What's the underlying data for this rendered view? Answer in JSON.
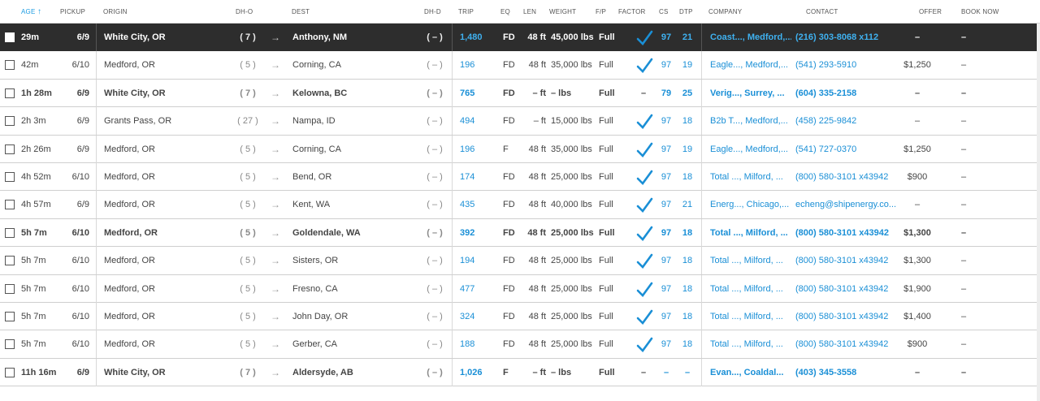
{
  "headers": {
    "age": "AGE",
    "pickup": "PICKUP",
    "origin": "ORIGIN",
    "dho": "DH-O",
    "dest": "DEST",
    "dhd": "DH-D",
    "trip": "TRIP",
    "eq": "EQ",
    "len": "LEN",
    "weight": "WEIGHT",
    "fp": "F/P",
    "factor": "FACTOR",
    "cs": "CS",
    "dtp": "DTP",
    "company": "COMPANY",
    "contact": "CONTACT",
    "offer": "OFFER",
    "booknow": "BOOK NOW"
  },
  "sort_icon": "sort-up-arrow-icon",
  "arrow_glyph": "→",
  "rows": [
    {
      "age": "29m",
      "pickup": "6/9",
      "origin": "White City, OR",
      "dho": "( 7 )",
      "dest": "Anthony, NM",
      "dhd": "( – )",
      "trip": "1,480",
      "eq": "FD",
      "len": "48 ft",
      "weight": "45,000 lbs",
      "fp": "Full",
      "factor": true,
      "cs": "97",
      "dtp": "21",
      "company": "Coast..., Medford,...",
      "contact": "(216) 303-8068 x112",
      "offer": "–",
      "booknow": "–"
    },
    {
      "age": "42m",
      "pickup": "6/10",
      "origin": "Medford, OR",
      "dho": "( 5 )",
      "dest": "Corning, CA",
      "dhd": "( – )",
      "trip": "196",
      "eq": "FD",
      "len": "48 ft",
      "weight": "35,000 lbs",
      "fp": "Full",
      "factor": true,
      "cs": "97",
      "dtp": "19",
      "company": "Eagle..., Medford,...",
      "contact": "(541) 293-5910",
      "offer": "$1,250",
      "booknow": "–"
    },
    {
      "age": "1h 28m",
      "pickup": "6/9",
      "origin": "White City, OR",
      "dho": "( 7 )",
      "dest": "Kelowna, BC",
      "dhd": "( – )",
      "trip": "765",
      "eq": "FD",
      "len": "– ft",
      "weight": "– lbs",
      "fp": "Full",
      "factor": false,
      "cs": "79",
      "dtp": "25",
      "company": "Verig..., Surrey, ...",
      "contact": "(604) 335-2158",
      "offer": "–",
      "booknow": "–"
    },
    {
      "age": "2h 3m",
      "pickup": "6/9",
      "origin": "Grants Pass, OR",
      "dho": "( 27 )",
      "dest": "Nampa, ID",
      "dhd": "( – )",
      "trip": "494",
      "eq": "FD",
      "len": "– ft",
      "weight": "15,000 lbs",
      "fp": "Full",
      "factor": true,
      "cs": "97",
      "dtp": "18",
      "company": "B2b T..., Medford,...",
      "contact": "(458) 225-9842",
      "offer": "–",
      "booknow": "–"
    },
    {
      "age": "2h 26m",
      "pickup": "6/9",
      "origin": "Medford, OR",
      "dho": "( 5 )",
      "dest": "Corning, CA",
      "dhd": "( – )",
      "trip": "196",
      "eq": "F",
      "len": "48 ft",
      "weight": "35,000 lbs",
      "fp": "Full",
      "factor": true,
      "cs": "97",
      "dtp": "19",
      "company": "Eagle..., Medford,...",
      "contact": "(541) 727-0370",
      "offer": "$1,250",
      "booknow": "–"
    },
    {
      "age": "4h 52m",
      "pickup": "6/10",
      "origin": "Medford, OR",
      "dho": "( 5 )",
      "dest": "Bend, OR",
      "dhd": "( – )",
      "trip": "174",
      "eq": "FD",
      "len": "48 ft",
      "weight": "25,000 lbs",
      "fp": "Full",
      "factor": true,
      "cs": "97",
      "dtp": "18",
      "company": "Total ..., Milford, ...",
      "contact": "(800) 580-3101 x43942",
      "offer": "$900",
      "booknow": "–"
    },
    {
      "age": "4h 57m",
      "pickup": "6/9",
      "origin": "Medford, OR",
      "dho": "( 5 )",
      "dest": "Kent, WA",
      "dhd": "( – )",
      "trip": "435",
      "eq": "FD",
      "len": "48 ft",
      "weight": "40,000 lbs",
      "fp": "Full",
      "factor": true,
      "cs": "97",
      "dtp": "21",
      "company": "Energ..., Chicago,...",
      "contact": "echeng@shipenergy.co...",
      "offer": "–",
      "booknow": "–"
    },
    {
      "age": "5h 7m",
      "pickup": "6/10",
      "origin": "Medford, OR",
      "dho": "( 5 )",
      "dest": "Goldendale, WA",
      "dhd": "( – )",
      "trip": "392",
      "eq": "FD",
      "len": "48 ft",
      "weight": "25,000 lbs",
      "fp": "Full",
      "factor": true,
      "cs": "97",
      "dtp": "18",
      "company": "Total ..., Milford, ...",
      "contact": "(800) 580-3101 x43942",
      "offer": "$1,300",
      "booknow": "–"
    },
    {
      "age": "5h 7m",
      "pickup": "6/10",
      "origin": "Medford, OR",
      "dho": "( 5 )",
      "dest": "Sisters, OR",
      "dhd": "( – )",
      "trip": "194",
      "eq": "FD",
      "len": "48 ft",
      "weight": "25,000 lbs",
      "fp": "Full",
      "factor": true,
      "cs": "97",
      "dtp": "18",
      "company": "Total ..., Milford, ...",
      "contact": "(800) 580-3101 x43942",
      "offer": "$1,300",
      "booknow": "–"
    },
    {
      "age": "5h 7m",
      "pickup": "6/10",
      "origin": "Medford, OR",
      "dho": "( 5 )",
      "dest": "Fresno, CA",
      "dhd": "( – )",
      "trip": "477",
      "eq": "FD",
      "len": "48 ft",
      "weight": "25,000 lbs",
      "fp": "Full",
      "factor": true,
      "cs": "97",
      "dtp": "18",
      "company": "Total ..., Milford, ...",
      "contact": "(800) 580-3101 x43942",
      "offer": "$1,900",
      "booknow": "–"
    },
    {
      "age": "5h 7m",
      "pickup": "6/10",
      "origin": "Medford, OR",
      "dho": "( 5 )",
      "dest": "John Day, OR",
      "dhd": "( – )",
      "trip": "324",
      "eq": "FD",
      "len": "48 ft",
      "weight": "25,000 lbs",
      "fp": "Full",
      "factor": true,
      "cs": "97",
      "dtp": "18",
      "company": "Total ..., Milford, ...",
      "contact": "(800) 580-3101 x43942",
      "offer": "$1,400",
      "booknow": "–"
    },
    {
      "age": "5h 7m",
      "pickup": "6/10",
      "origin": "Medford, OR",
      "dho": "( 5 )",
      "dest": "Gerber, CA",
      "dhd": "( – )",
      "trip": "188",
      "eq": "FD",
      "len": "48 ft",
      "weight": "25,000 lbs",
      "fp": "Full",
      "factor": true,
      "cs": "97",
      "dtp": "18",
      "company": "Total ..., Milford, ...",
      "contact": "(800) 580-3101 x43942",
      "offer": "$900",
      "booknow": "–"
    },
    {
      "age": "11h 16m",
      "pickup": "6/9",
      "origin": "White City, OR",
      "dho": "( 7 )",
      "dest": "Aldersyde, AB",
      "dhd": "( – )",
      "trip": "1,026",
      "eq": "F",
      "len": "– ft",
      "weight": "– lbs",
      "fp": "Full",
      "factor": false,
      "cs": "–",
      "dtp": "–",
      "company": "Evan..., Coaldal...",
      "contact": "(403) 345-3558",
      "offer": "–",
      "booknow": "–"
    }
  ],
  "colors": {
    "accent": "#1a8fd6",
    "selected_row_bg": "#2d2d2d",
    "check": "#1a8fd6"
  }
}
